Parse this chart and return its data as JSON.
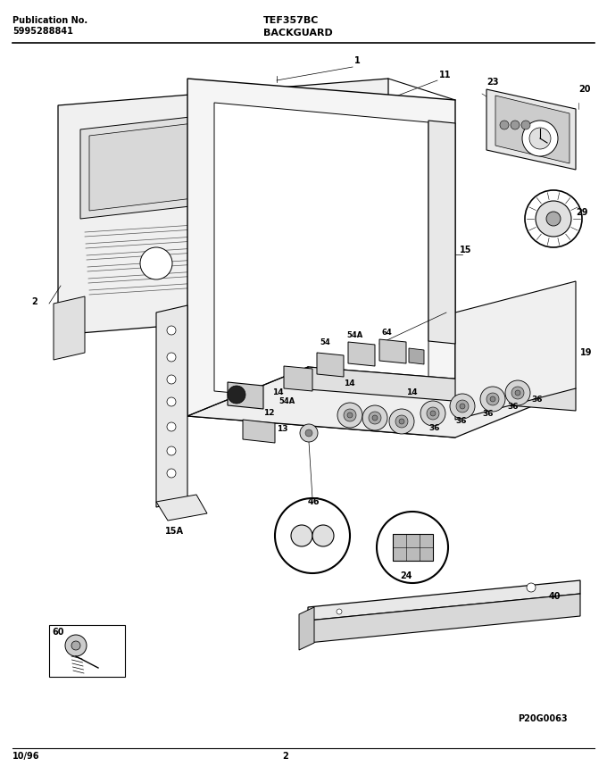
{
  "title_model": "TEF357BC",
  "title_section": "BACKGUARD",
  "pub_no_label": "Publication No.",
  "pub_no": "5995288841",
  "date": "10/96",
  "page": "2",
  "part_id": "P20G0063",
  "bg_color": "#ffffff",
  "line_color": "#000000",
  "fig_width": 6.8,
  "fig_height": 8.68,
  "dpi": 100
}
